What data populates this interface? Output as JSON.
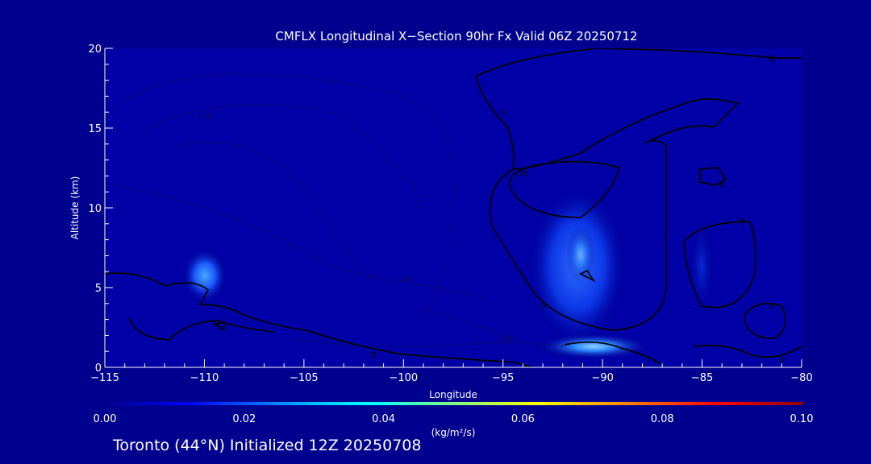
{
  "chart_data": {
    "type": "contour",
    "title": "CMFLX Longitudinal X−Section 90hr  Fx Valid 06Z 20250712",
    "xlabel": "Longitude",
    "ylabel": "Altitude (km)",
    "xlim": [
      -115,
      -80
    ],
    "ylim": [
      0,
      20
    ],
    "xticks": [
      -115,
      -110,
      -105,
      -100,
      -95,
      -90,
      -85,
      -80
    ],
    "xtick_labels": [
      "−115",
      "−110",
      "−105",
      "−100",
      "−95",
      "−90",
      "−85",
      "−80"
    ],
    "yticks": [
      0,
      5,
      10,
      15,
      20
    ],
    "ytick_labels": [
      "0",
      "5",
      "10",
      "15",
      "20"
    ],
    "colorbar": {
      "min": 0.0,
      "max": 0.1,
      "tick_labels": [
        "0.00",
        "0.02",
        "0.04",
        "0.06",
        "0.08",
        "0.10"
      ],
      "units_label": "(kg/m²/s)",
      "colors": [
        "#00008f",
        "#0000ff",
        "#00bfff",
        "#00ffff",
        "#7fff7f",
        "#ffff00",
        "#ff7f00",
        "#ff0000",
        "#8f0000"
      ]
    },
    "filled_maxima": [
      {
        "lon": -110,
        "alt": 6,
        "value": 0.015
      },
      {
        "lon": -91,
        "alt": 7,
        "value": 0.012
      },
      {
        "lon": -91,
        "alt": 1.5,
        "value": 0.018
      },
      {
        "lon": -85,
        "alt": 5.5,
        "value": 0.006
      }
    ],
    "contour_labels": [
      {
        "text": "0",
        "lon": -81.5,
        "alt": 19.4,
        "dashed": false
      },
      {
        "text": "0",
        "lon": -95,
        "alt": 16,
        "dashed": false
      },
      {
        "text": "10",
        "lon": -94,
        "alt": 12.2,
        "dashed": false
      },
      {
        "text": "0",
        "lon": -84,
        "alt": 11.5,
        "dashed": false
      },
      {
        "text": "0",
        "lon": -83,
        "alt": 9.2,
        "dashed": false
      },
      {
        "text": "0",
        "lon": -93,
        "alt": 3.9,
        "dashed": false
      },
      {
        "text": "0",
        "lon": -81.5,
        "alt": 3.9,
        "dashed": false
      },
      {
        "text": "0",
        "lon": -81,
        "alt": 0.5,
        "dashed": false
      },
      {
        "text": "0",
        "lon": -101.5,
        "alt": 0.8,
        "dashed": false
      },
      {
        "text": "−10",
        "lon": -110,
        "alt": 15.8,
        "dashed": true
      },
      {
        "text": "−10",
        "lon": -100,
        "alt": 5.6,
        "dashed": true
      },
      {
        "text": "−10",
        "lon": -95,
        "alt": 1.8,
        "dashed": true
      }
    ]
  },
  "footer": "Toronto (44°N) Initialized 12Z 20250708"
}
